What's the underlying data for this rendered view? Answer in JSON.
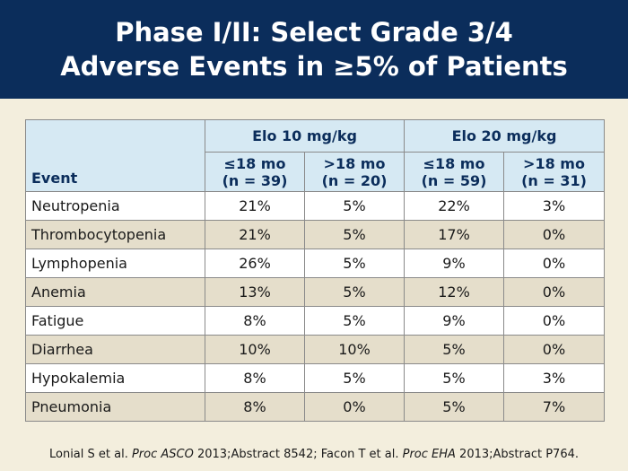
{
  "title": {
    "line1": "Phase I/II: Select Grade 3/4",
    "line2": "Adverse Events in ≥5% of Patients"
  },
  "table": {
    "event_header": "Event",
    "groups": [
      "Elo 10 mg/kg",
      "Elo 20 mg/kg"
    ],
    "subheaders": [
      {
        "period": "≤18 mo",
        "n": "(n = 39)"
      },
      {
        "period": ">18 mo",
        "n": "(n = 20)"
      },
      {
        "period": "≤18 mo",
        "n": "(n = 59)"
      },
      {
        "period": ">18 mo",
        "n": "(n = 31)"
      }
    ],
    "rows": [
      {
        "event": "Neutropenia",
        "values": [
          "21%",
          "5%",
          "22%",
          "3%"
        ]
      },
      {
        "event": "Thrombocytopenia",
        "values": [
          "21%",
          "5%",
          "17%",
          "0%"
        ]
      },
      {
        "event": "Lymphopenia",
        "values": [
          "26%",
          "5%",
          "9%",
          "0%"
        ]
      },
      {
        "event": "Anemia",
        "values": [
          "13%",
          "5%",
          "12%",
          "0%"
        ]
      },
      {
        "event": "Fatigue",
        "values": [
          "8%",
          "5%",
          "9%",
          "0%"
        ]
      },
      {
        "event": "Diarrhea",
        "values": [
          "10%",
          "10%",
          "5%",
          "0%"
        ]
      },
      {
        "event": "Hypokalemia",
        "values": [
          "8%",
          "5%",
          "5%",
          "3%"
        ]
      },
      {
        "event": "Pneumonia",
        "values": [
          "8%",
          "0%",
          "5%",
          "7%"
        ]
      }
    ]
  },
  "footnote": {
    "part1": "Lonial S et al. ",
    "journal1": "Proc ASCO",
    "part2": " 2013;Abstract 8542; Facon T et al. ",
    "journal2": "Proc EHA",
    "part3": " 2013;Abstract P764."
  },
  "colors": {
    "title_bar": "#0b2d5b",
    "background": "#f3eedd",
    "header_fill": "#d6e9f3",
    "row_alt": "#e5decb"
  }
}
